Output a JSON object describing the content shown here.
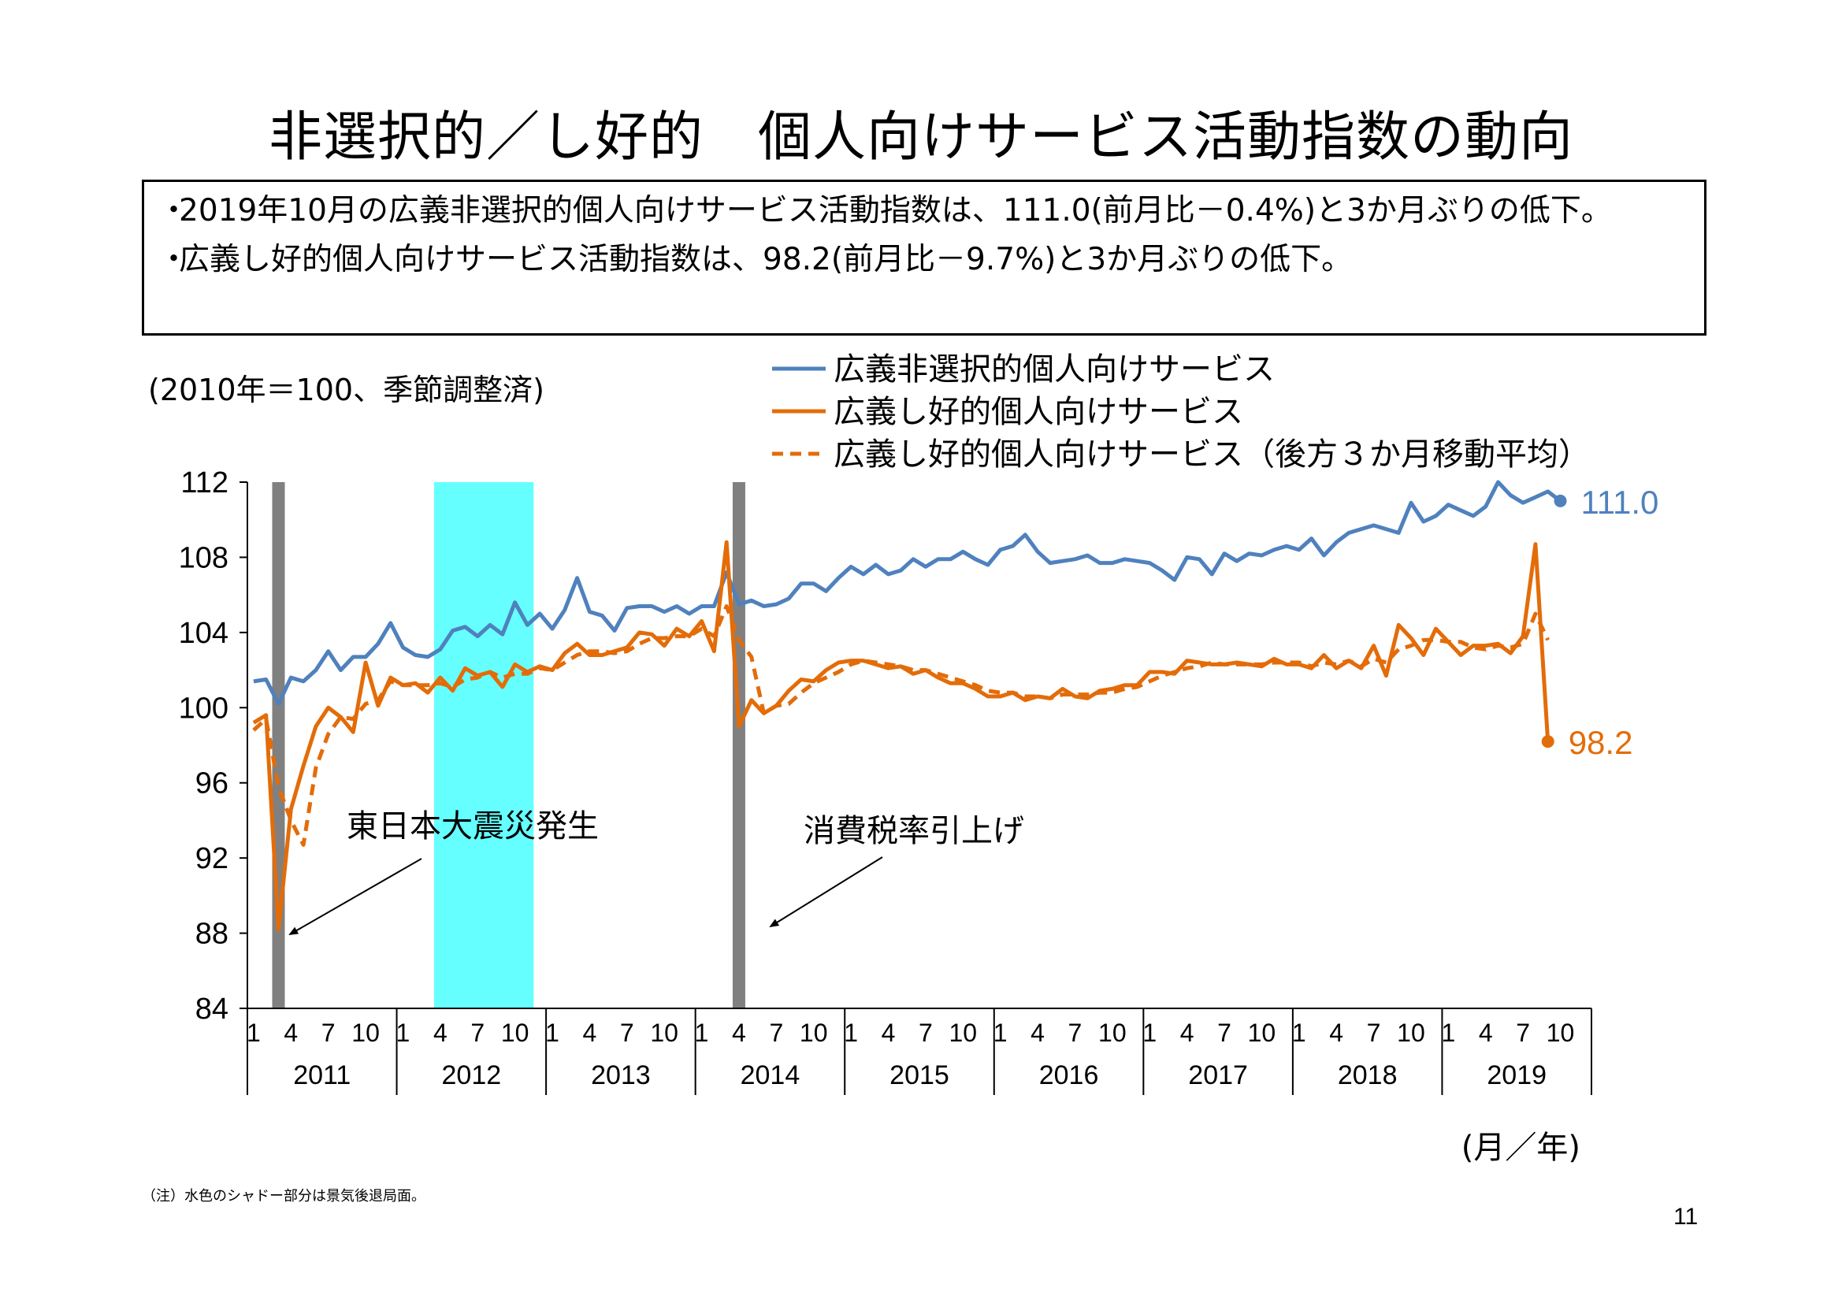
{
  "title": "非選択的／し好的　個人向けサービス活動指数の動向",
  "summary": [
    "2019年10月の広義非選択的個人向けサービス活動指数は、111.0(前月比－0.4%)と3か月ぶりの低下。",
    "広義し好的個人向けサービス活動指数は、98.2(前月比－9.7%)と3か月ぶりの低下。"
  ],
  "bullet_symbol": "・",
  "chart_data": {
    "type": "line",
    "unit_note": "(2010年＝100、季節調整済)",
    "xlabel": "(月／年)",
    "ylim": [
      84,
      112
    ],
    "yticks": [
      84,
      88,
      92,
      96,
      100,
      104,
      108,
      112
    ],
    "years": [
      "2011",
      "2012",
      "2013",
      "2014",
      "2015",
      "2016",
      "2017",
      "2018",
      "2019"
    ],
    "month_ticks": [
      "1",
      "4",
      "7",
      "10"
    ],
    "x_start": "2011-01",
    "series": [
      {
        "name": "広義非選択的個人向けサービス",
        "color": "#4F81BD",
        "style": "solid",
        "end_label": "111.0",
        "values": [
          101.4,
          101.5,
          100.2,
          101.6,
          101.4,
          102.0,
          103.0,
          102.0,
          102.7,
          102.7,
          103.4,
          104.5,
          103.2,
          102.8,
          102.7,
          103.1,
          104.1,
          104.3,
          103.8,
          104.4,
          103.9,
          105.6,
          104.4,
          105.0,
          104.2,
          105.2,
          106.9,
          105.1,
          104.9,
          104.1,
          105.3,
          105.4,
          105.4,
          105.1,
          105.4,
          105.0,
          105.4,
          105.4,
          107.2,
          105.5,
          105.7,
          105.4,
          105.5,
          105.8,
          106.6,
          106.6,
          106.2,
          106.9,
          107.5,
          107.1,
          107.6,
          107.1,
          107.3,
          107.9,
          107.5,
          107.9,
          107.9,
          108.3,
          107.9,
          107.6,
          108.4,
          108.6,
          109.2,
          108.3,
          107.7,
          107.8,
          107.9,
          108.1,
          107.7,
          107.7,
          107.9,
          107.8,
          107.7,
          107.3,
          106.8,
          108.0,
          107.9,
          107.1,
          108.2,
          107.8,
          108.2,
          108.1,
          108.4,
          108.6,
          108.4,
          109.0,
          108.1,
          108.8,
          109.3,
          109.5,
          109.7,
          109.5,
          109.3,
          110.9,
          109.9,
          110.2,
          110.8,
          110.5,
          110.2,
          110.7,
          112.0,
          111.3,
          110.9,
          111.2,
          111.5,
          111.0
        ]
      },
      {
        "name": "広義し好的個人向けサービス",
        "color": "#E36C09",
        "style": "solid",
        "end_label": "98.2",
        "values": [
          99.2,
          99.6,
          88.2,
          94.6,
          96.9,
          99.0,
          100.0,
          99.5,
          98.7,
          102.4,
          100.1,
          101.6,
          101.2,
          101.3,
          100.8,
          101.6,
          100.9,
          102.1,
          101.7,
          101.9,
          101.1,
          102.3,
          101.9,
          102.2,
          102.0,
          102.9,
          103.4,
          102.8,
          102.8,
          103.0,
          103.2,
          104.0,
          103.9,
          103.3,
          104.2,
          103.8,
          104.6,
          103.0,
          108.8,
          99.0,
          100.4,
          99.7,
          100.1,
          100.9,
          101.5,
          101.4,
          102.0,
          102.4,
          102.5,
          102.5,
          102.3,
          102.1,
          102.2,
          101.8,
          102.0,
          101.6,
          101.3,
          101.3,
          101.0,
          100.6,
          100.6,
          100.8,
          100.4,
          100.6,
          100.5,
          101.0,
          100.6,
          100.5,
          100.9,
          101.0,
          101.2,
          101.2,
          101.9,
          101.9,
          101.8,
          102.5,
          102.4,
          102.3,
          102.3,
          102.4,
          102.3,
          102.2,
          102.6,
          102.3,
          102.3,
          102.1,
          102.8,
          102.1,
          102.5,
          102.1,
          103.3,
          101.7,
          104.4,
          103.7,
          102.8,
          104.2,
          103.5,
          102.8,
          103.3,
          103.3,
          103.4,
          102.9,
          103.8,
          108.7,
          98.2
        ]
      },
      {
        "name": "広義し好的個人向けサービス（後方３か月移動平均）",
        "color": "#E36C09",
        "style": "dashed",
        "start_index": 0,
        "values": [
          98.8,
          99.4,
          95.8,
          94.0,
          92.7,
          96.8,
          98.6,
          99.5,
          99.4,
          100.2,
          100.4,
          101.4,
          101.2,
          101.2,
          101.2,
          101.3,
          101.1,
          101.5,
          101.6,
          101.9,
          101.6,
          101.8,
          101.8,
          102.1,
          102.0,
          102.4,
          102.8,
          103.0,
          103.0,
          102.9,
          103.0,
          103.4,
          103.7,
          103.7,
          103.8,
          103.8,
          104.2,
          103.8,
          105.4,
          103.6,
          102.7,
          99.7,
          100.1,
          100.2,
          100.8,
          101.3,
          101.6,
          101.9,
          102.3,
          102.5,
          102.4,
          102.3,
          102.2,
          102.0,
          102.0,
          101.8,
          101.6,
          101.4,
          101.2,
          100.9,
          100.8,
          100.8,
          100.6,
          100.6,
          100.5,
          100.7,
          100.7,
          100.7,
          100.8,
          100.8,
          101.0,
          101.1,
          101.4,
          101.7,
          101.9,
          102.1,
          102.2,
          102.4,
          102.3,
          102.3,
          102.3,
          102.3,
          102.4,
          102.4,
          102.4,
          102.2,
          102.4,
          102.3,
          102.5,
          102.2,
          102.6,
          102.4,
          103.1,
          103.3,
          103.6,
          103.6,
          103.5,
          103.5,
          103.2,
          103.1,
          103.3,
          103.2,
          103.4,
          105.0,
          103.6
        ]
      }
    ],
    "shades": [
      {
        "label": "景気後退局面",
        "from": "2012-04",
        "to": "2012-11",
        "color": "#66FFFF"
      }
    ],
    "event_bars": [
      {
        "at": "2011-03",
        "color": "#808080"
      },
      {
        "at": "2014-04",
        "color": "#808080"
      }
    ],
    "annotations": [
      {
        "text": "東日本大震災発生",
        "points_to": "2011-03"
      },
      {
        "text": "消費税率引上げ",
        "points_to": "2014-04"
      }
    ]
  },
  "footnote": "（注）水色のシャドー部分は景気後退局面。",
  "page_number": "11"
}
